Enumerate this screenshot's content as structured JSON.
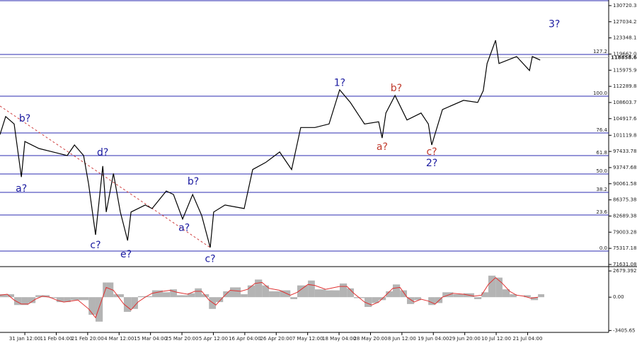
{
  "chart_data": [
    {
      "type": "line",
      "xlim": [
        -0.79,
        18.58
      ],
      "xticks": [
        {
          "value": 0,
          "label": "31 Jan 12:00"
        },
        {
          "value": 1,
          "label": "11 Feb 04:00"
        },
        {
          "value": 2,
          "label": "21 Feb 20:00"
        },
        {
          "value": 3,
          "label": "4 Mar 12:00"
        },
        {
          "value": 4,
          "label": "15 Mar 04:00"
        },
        {
          "value": 5,
          "label": "25 Mar 20:00"
        },
        {
          "value": 6,
          "label": "5 Apr 12:00"
        },
        {
          "value": 7,
          "label": "16 Apr 04:00"
        },
        {
          "value": 8,
          "label": "26 Apr 20:00"
        },
        {
          "value": 9,
          "label": "7 May 12:00"
        },
        {
          "value": 10,
          "label": "18 May 04:00"
        },
        {
          "value": 11,
          "label": "28 May 20:00"
        },
        {
          "value": 12,
          "label": "8 Jun 12:00"
        },
        {
          "value": 13,
          "label": "19 Jun 04:00"
        },
        {
          "value": 14,
          "label": "29 Jun 20:00"
        },
        {
          "value": 15,
          "label": "10 Jul 12:00"
        },
        {
          "value": 16,
          "label": "21 Jul 04:00"
        }
      ],
      "ylim": [
        71300,
        132000
      ],
      "yticks": [
        130720.38,
        127034.28,
        123348.18,
        119662.08,
        115975.98,
        112289.88,
        108603.78,
        104917.68,
        101119.88,
        97433.78,
        93747.68,
        90061.58,
        86375.38,
        82689.38,
        79003.28,
        75317.18,
        71631.08
      ],
      "series": [
        {
          "color": "#000000",
          "x": [
            -0.79,
            -0.61,
            -0.34,
            -0.11,
            0,
            0.45,
            0.9,
            1.35,
            1.58,
            1.87,
            2.03,
            2.25,
            2.48,
            2.59,
            2.82,
            3.04,
            3.27,
            3.38,
            3.83,
            4.05,
            4.5,
            4.73,
            5.02,
            5.34,
            5.63,
            5.9,
            6.01,
            6.37,
            6.98,
            7.25,
            7.66,
            8.11,
            8.49,
            8.78,
            9.23,
            9.68,
            10.02,
            10.36,
            10.81,
            11.26,
            11.37,
            11.49,
            11.78,
            12.16,
            12.61,
            12.84,
            12.95,
            13.29,
            13.96,
            14.41,
            14.59,
            14.71,
            14.98,
            15.09,
            15.65,
            16.06,
            16.15,
            16.4
          ],
          "values": [
            101300,
            105400,
            103700,
            91600,
            99700,
            98100,
            97300,
            96500,
            98900,
            96500,
            90000,
            78400,
            94100,
            83600,
            92400,
            83600,
            77100,
            83600,
            85200,
            84400,
            88400,
            87600,
            82000,
            87600,
            82800,
            75500,
            83600,
            85200,
            84400,
            93300,
            94900,
            97300,
            93300,
            102900,
            102900,
            103700,
            111500,
            108600,
            103700,
            104200,
            100500,
            106200,
            110200,
            104600,
            106200,
            103700,
            98900,
            107000,
            109100,
            108600,
            111300,
            117500,
            122800,
            117500,
            119100,
            115900,
            119100,
            118300
          ]
        }
      ],
      "levels": [
        {
          "label": "127.2",
          "value": 119570
        },
        {
          "label": "100.0",
          "value": 110045
        },
        {
          "label": "76.4",
          "value": 101650
        },
        {
          "label": "61.8",
          "value": 96484
        },
        {
          "label": "50.0",
          "value": 92287
        },
        {
          "label": "38.2",
          "value": 88089
        },
        {
          "label": "23.6",
          "value": 82923
        },
        {
          "label": "0.0",
          "value": 74690
        }
      ],
      "level_color": "#2b2bb0",
      "last_price": 118858.61,
      "trendline": {
        "from": [
          -0.79,
          107800
        ],
        "to": [
          5.9,
          75500
        ],
        "color": "#d04040"
      },
      "annotations": [
        {
          "text": "b?",
          "x": 0,
          "y": 104900,
          "color": "#1a1aa0"
        },
        {
          "text": "a?",
          "x": -0.11,
          "y": 88900,
          "color": "#1a1aa0"
        },
        {
          "text": "d?",
          "x": 2.48,
          "y": 97100,
          "color": "#1a1aa0"
        },
        {
          "text": "c?",
          "x": 2.25,
          "y": 76000,
          "color": "#1a1aa0"
        },
        {
          "text": "e?",
          "x": 3.22,
          "y": 73900,
          "color": "#1a1aa0"
        },
        {
          "text": "b?",
          "x": 5.36,
          "y": 90500,
          "color": "#1a1aa0"
        },
        {
          "text": "a?",
          "x": 5.07,
          "y": 79900,
          "color": "#1a1aa0"
        },
        {
          "text": "c?",
          "x": 5.9,
          "y": 72800,
          "color": "#1a1aa0"
        },
        {
          "text": "1?",
          "x": 10.02,
          "y": 113000,
          "color": "#1a1aa0"
        },
        {
          "text": "b?",
          "x": 11.82,
          "y": 111800,
          "color": "#c0392b"
        },
        {
          "text": "a?",
          "x": 11.37,
          "y": 98400,
          "color": "#c0392b"
        },
        {
          "text": "c?",
          "x": 12.95,
          "y": 97300,
          "color": "#c0392b"
        },
        {
          "text": "2?",
          "x": 12.95,
          "y": 94700,
          "color": "#1a1aa0"
        },
        {
          "text": "3?",
          "x": 16.85,
          "y": 126400,
          "color": "#1a1aa0"
        }
      ]
    },
    {
      "type": "bar",
      "xlim": [
        -0.79,
        18.58
      ],
      "ylim": [
        -3600,
        3050
      ],
      "yticks": [
        2679.392,
        {
          "value": 0,
          "label": "0.00"
        },
        -3405.65
      ],
      "x": [
        -0.79,
        -0.56,
        -0.34,
        -0.11,
        0.11,
        0.34,
        0.56,
        0.79,
        1.01,
        1.24,
        1.46,
        1.69,
        2.03,
        2.25,
        2.48,
        2.59,
        2.82,
        3.15,
        3.38,
        3.6,
        3.83,
        4.05,
        4.39,
        4.62,
        4.84,
        5.18,
        5.41,
        5.63,
        5.86,
        6.08,
        6.31,
        6.53,
        6.87,
        7.09,
        7.32,
        7.55,
        7.77,
        8.11,
        8.45,
        8.67,
        9.01,
        9.23,
        9.57,
        10.02,
        10.25,
        10.47,
        10.81,
        11.04,
        11.26,
        11.49,
        11.71,
        11.94,
        12.16,
        12.39,
        12.61,
        12.84,
        13.06,
        13.29,
        13.63,
        13.96,
        14.3,
        14.53,
        14.75,
        14.98,
        15.2,
        15.43,
        15.65,
        15.88,
        16.1,
        16.33
      ],
      "series": [
        {
          "color": "#b4b4b4",
          "values": [
            300,
            300,
            -800,
            -800,
            -600,
            200,
            200,
            -100,
            -500,
            -500,
            -300,
            -300,
            -1800,
            -2500,
            1500,
            1500,
            300,
            -1500,
            -1200,
            100,
            100,
            700,
            500,
            800,
            200,
            400,
            900,
            300,
            -1200,
            -500,
            600,
            1000,
            300,
            1200,
            1800,
            1200,
            600,
            700,
            -200,
            1200,
            1700,
            800,
            700,
            1400,
            900,
            -100,
            -1000,
            -600,
            -300,
            600,
            1300,
            700,
            -700,
            -300,
            0,
            -800,
            -600,
            500,
            300,
            400,
            -200,
            500,
            2200,
            2000,
            800,
            300,
            0,
            200,
            -300,
            300
          ]
        },
        {
          "color": "#e03030",
          "values": [
            200,
            300,
            -300,
            -700,
            -700,
            -200,
            100,
            0,
            -300,
            -500,
            -400,
            -300,
            -1200,
            -2100,
            0,
            1000,
            700,
            -700,
            -1300,
            -500,
            0,
            400,
            600,
            700,
            500,
            300,
            600,
            600,
            -300,
            -800,
            0,
            700,
            600,
            800,
            1400,
            1500,
            900,
            700,
            200,
            500,
            1300,
            1200,
            800,
            1100,
            1100,
            400,
            -500,
            -800,
            -500,
            200,
            900,
            1000,
            0,
            -500,
            -200,
            -400,
            -700,
            0,
            400,
            300,
            100,
            200,
            1300,
            2000,
            1400,
            600,
            200,
            100,
            -100,
            0
          ]
        }
      ]
    }
  ]
}
